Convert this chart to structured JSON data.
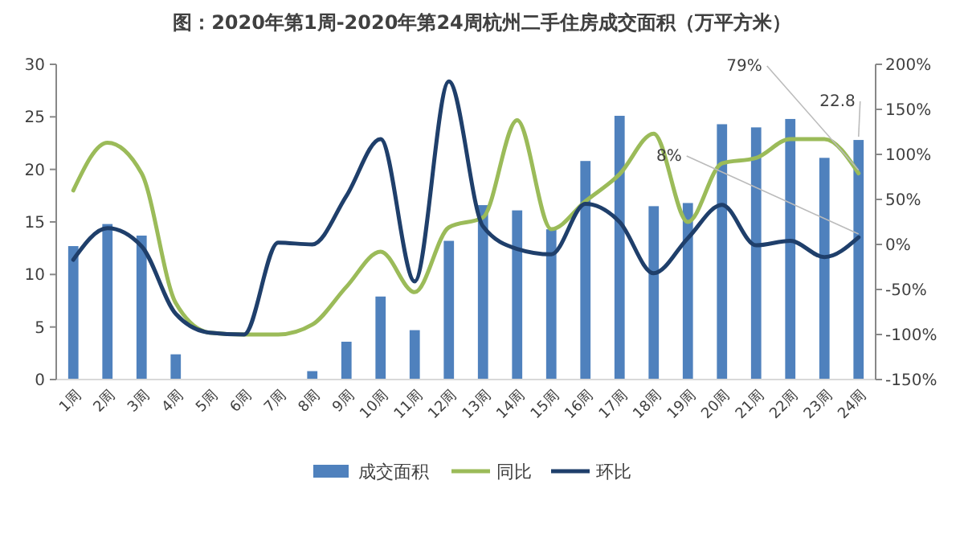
{
  "chart_data": {
    "type": "bar",
    "title": "图：2020年第1周-2020年第24周杭州二手住房成交面积（万平方米）",
    "categories": [
      "1周",
      "2周",
      "3周",
      "4周",
      "5周",
      "6周",
      "7周",
      "8周",
      "9周",
      "10周",
      "11周",
      "12周",
      "13周",
      "14周",
      "15周",
      "16周",
      "17周",
      "18周",
      "19周",
      "20周",
      "21周",
      "22周",
      "23周",
      "24周"
    ],
    "series": [
      {
        "name": "成交面积",
        "color": "#4f81bd",
        "values": [
          12.7,
          14.8,
          13.7,
          2.4,
          0,
          0,
          0,
          0.8,
          3.6,
          7.9,
          4.7,
          13.2,
          16.6,
          16.1,
          14.3,
          20.8,
          25.1,
          16.5,
          16.8,
          24.3,
          24,
          24.8,
          21.1,
          22.8
        ],
        "value_labels": [
          null,
          null,
          null,
          null,
          null,
          null,
          null,
          null,
          null,
          null,
          null,
          null,
          null,
          null,
          null,
          null,
          null,
          null,
          null,
          null,
          null,
          null,
          null,
          "22.8"
        ]
      },
      {
        "name": "同比",
        "type": "line",
        "axis": "y2",
        "color": "#9bbb59",
        "values": [
          60,
          113,
          79,
          -65,
          -98,
          -100,
          -100,
          -89,
          -47,
          -8,
          -53,
          19,
          30,
          138,
          17,
          48,
          78,
          123,
          25,
          90,
          96,
          117,
          117,
          79
        ],
        "value_labels": [
          null,
          null,
          null,
          null,
          null,
          null,
          null,
          null,
          null,
          null,
          null,
          null,
          null,
          null,
          null,
          null,
          null,
          null,
          null,
          null,
          null,
          null,
          null,
          "79%"
        ]
      },
      {
        "name": "环比",
        "type": "line",
        "axis": "y2",
        "color": "#1f3f6b",
        "values": [
          -17,
          18,
          -2,
          -77,
          -98,
          -100,
          2,
          0,
          54,
          117,
          -41,
          181,
          20,
          -5,
          -11,
          45,
          25,
          -32,
          7,
          44,
          -1,
          4,
          -14,
          8
        ],
        "value_labels": [
          null,
          null,
          null,
          null,
          null,
          null,
          null,
          null,
          null,
          null,
          null,
          null,
          null,
          null,
          null,
          null,
          null,
          null,
          null,
          null,
          null,
          null,
          null,
          "8%"
        ]
      }
    ],
    "ylim": [
      0,
      30
    ],
    "yticks": [
      0,
      5,
      10,
      15,
      20,
      25,
      30
    ],
    "y2lim": [
      -150,
      200
    ],
    "y2ticks": [
      {
        "value": -150,
        "label": "-150%"
      },
      {
        "value": -100,
        "label": "-100%"
      },
      {
        "value": -50,
        "label": "-50%"
      },
      {
        "value": 0,
        "label": "0%"
      },
      {
        "value": 50,
        "label": "50%"
      },
      {
        "value": 100,
        "label": "100%"
      },
      {
        "value": 150,
        "label": "150%"
      },
      {
        "value": 200,
        "label": "200%"
      }
    ],
    "grid": false,
    "legend": "bottom"
  }
}
